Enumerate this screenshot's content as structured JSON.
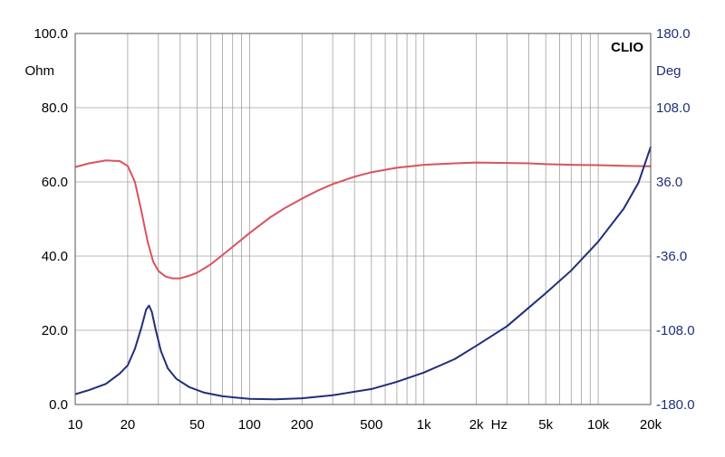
{
  "chart_data": {
    "type": "line",
    "brand": "CLIO",
    "x_scale": "log",
    "xlim": [
      10,
      20000
    ],
    "x_tick_labels": [
      {
        "value": 10,
        "label": "10"
      },
      {
        "value": 20,
        "label": "20"
      },
      {
        "value": 50,
        "label": "50"
      },
      {
        "value": 100,
        "label": "100"
      },
      {
        "value": 200,
        "label": "200"
      },
      {
        "value": 500,
        "label": "500"
      },
      {
        "value": 1000,
        "label": "1k"
      },
      {
        "value": 2000,
        "label": "2k"
      },
      {
        "value": 5000,
        "label": "5k"
      },
      {
        "value": 10000,
        "label": "10k"
      },
      {
        "value": 20000,
        "label": "20k"
      }
    ],
    "x_unit": "Hz",
    "y_left": {
      "unit": "Ohm",
      "ylim": [
        0,
        100
      ],
      "ticks": [
        "0.0",
        "20.0",
        "40.0",
        "60.0",
        "80.0",
        "100.0"
      ]
    },
    "y_right": {
      "unit": "Deg",
      "ylim": [
        -180,
        180
      ],
      "ticks": [
        "-180.0",
        "-108.0",
        "-36.0",
        "36.0",
        "108.0",
        "180.0"
      ]
    },
    "grid": true,
    "series": [
      {
        "axis": "left",
        "color": "#d9535f",
        "points": [
          [
            10,
            64.0
          ],
          [
            12,
            65.0
          ],
          [
            15,
            65.8
          ],
          [
            18,
            65.6
          ],
          [
            20,
            64.3
          ],
          [
            22,
            60.0
          ],
          [
            24,
            52.0
          ],
          [
            26,
            44.0
          ],
          [
            28,
            38.5
          ],
          [
            30,
            36.0
          ],
          [
            33,
            34.5
          ],
          [
            36,
            34.0
          ],
          [
            40,
            34.0
          ],
          [
            45,
            34.7
          ],
          [
            50,
            35.5
          ],
          [
            60,
            37.8
          ],
          [
            70,
            40.3
          ],
          [
            80,
            42.5
          ],
          [
            100,
            46.2
          ],
          [
            130,
            50.3
          ],
          [
            160,
            53.0
          ],
          [
            200,
            55.5
          ],
          [
            250,
            57.8
          ],
          [
            300,
            59.4
          ],
          [
            400,
            61.4
          ],
          [
            500,
            62.6
          ],
          [
            700,
            63.8
          ],
          [
            1000,
            64.6
          ],
          [
            1500,
            65.0
          ],
          [
            2000,
            65.2
          ],
          [
            3000,
            65.1
          ],
          [
            4000,
            65.0
          ],
          [
            5000,
            64.8
          ],
          [
            7000,
            64.6
          ],
          [
            10000,
            64.5
          ],
          [
            15000,
            64.3
          ],
          [
            20000,
            64.2
          ]
        ]
      },
      {
        "axis": "right",
        "color": "#1f2f7a",
        "points": [
          [
            10,
            -170.0
          ],
          [
            12,
            -166.0
          ],
          [
            15,
            -160.0
          ],
          [
            18,
            -150.0
          ],
          [
            20,
            -142.0
          ],
          [
            22,
            -126.0
          ],
          [
            24,
            -105.0
          ],
          [
            25.5,
            -88.0
          ],
          [
            26.5,
            -84.0
          ],
          [
            27.5,
            -90.0
          ],
          [
            29,
            -108.0
          ],
          [
            31,
            -128.0
          ],
          [
            34,
            -145.0
          ],
          [
            38,
            -155.0
          ],
          [
            45,
            -163.0
          ],
          [
            55,
            -168.5
          ],
          [
            70,
            -172.0
          ],
          [
            100,
            -174.5
          ],
          [
            140,
            -175.0
          ],
          [
            200,
            -174.0
          ],
          [
            300,
            -171.0
          ],
          [
            500,
            -165.0
          ],
          [
            700,
            -158.0
          ],
          [
            1000,
            -149.0
          ],
          [
            1500,
            -136.0
          ],
          [
            2000,
            -123.0
          ],
          [
            3000,
            -104.0
          ],
          [
            4000,
            -86.0
          ],
          [
            5000,
            -72.0
          ],
          [
            7000,
            -50.0
          ],
          [
            10000,
            -22.0
          ],
          [
            14000,
            10.0
          ],
          [
            17000,
            35.0
          ],
          [
            20000,
            70.0
          ]
        ]
      }
    ]
  }
}
